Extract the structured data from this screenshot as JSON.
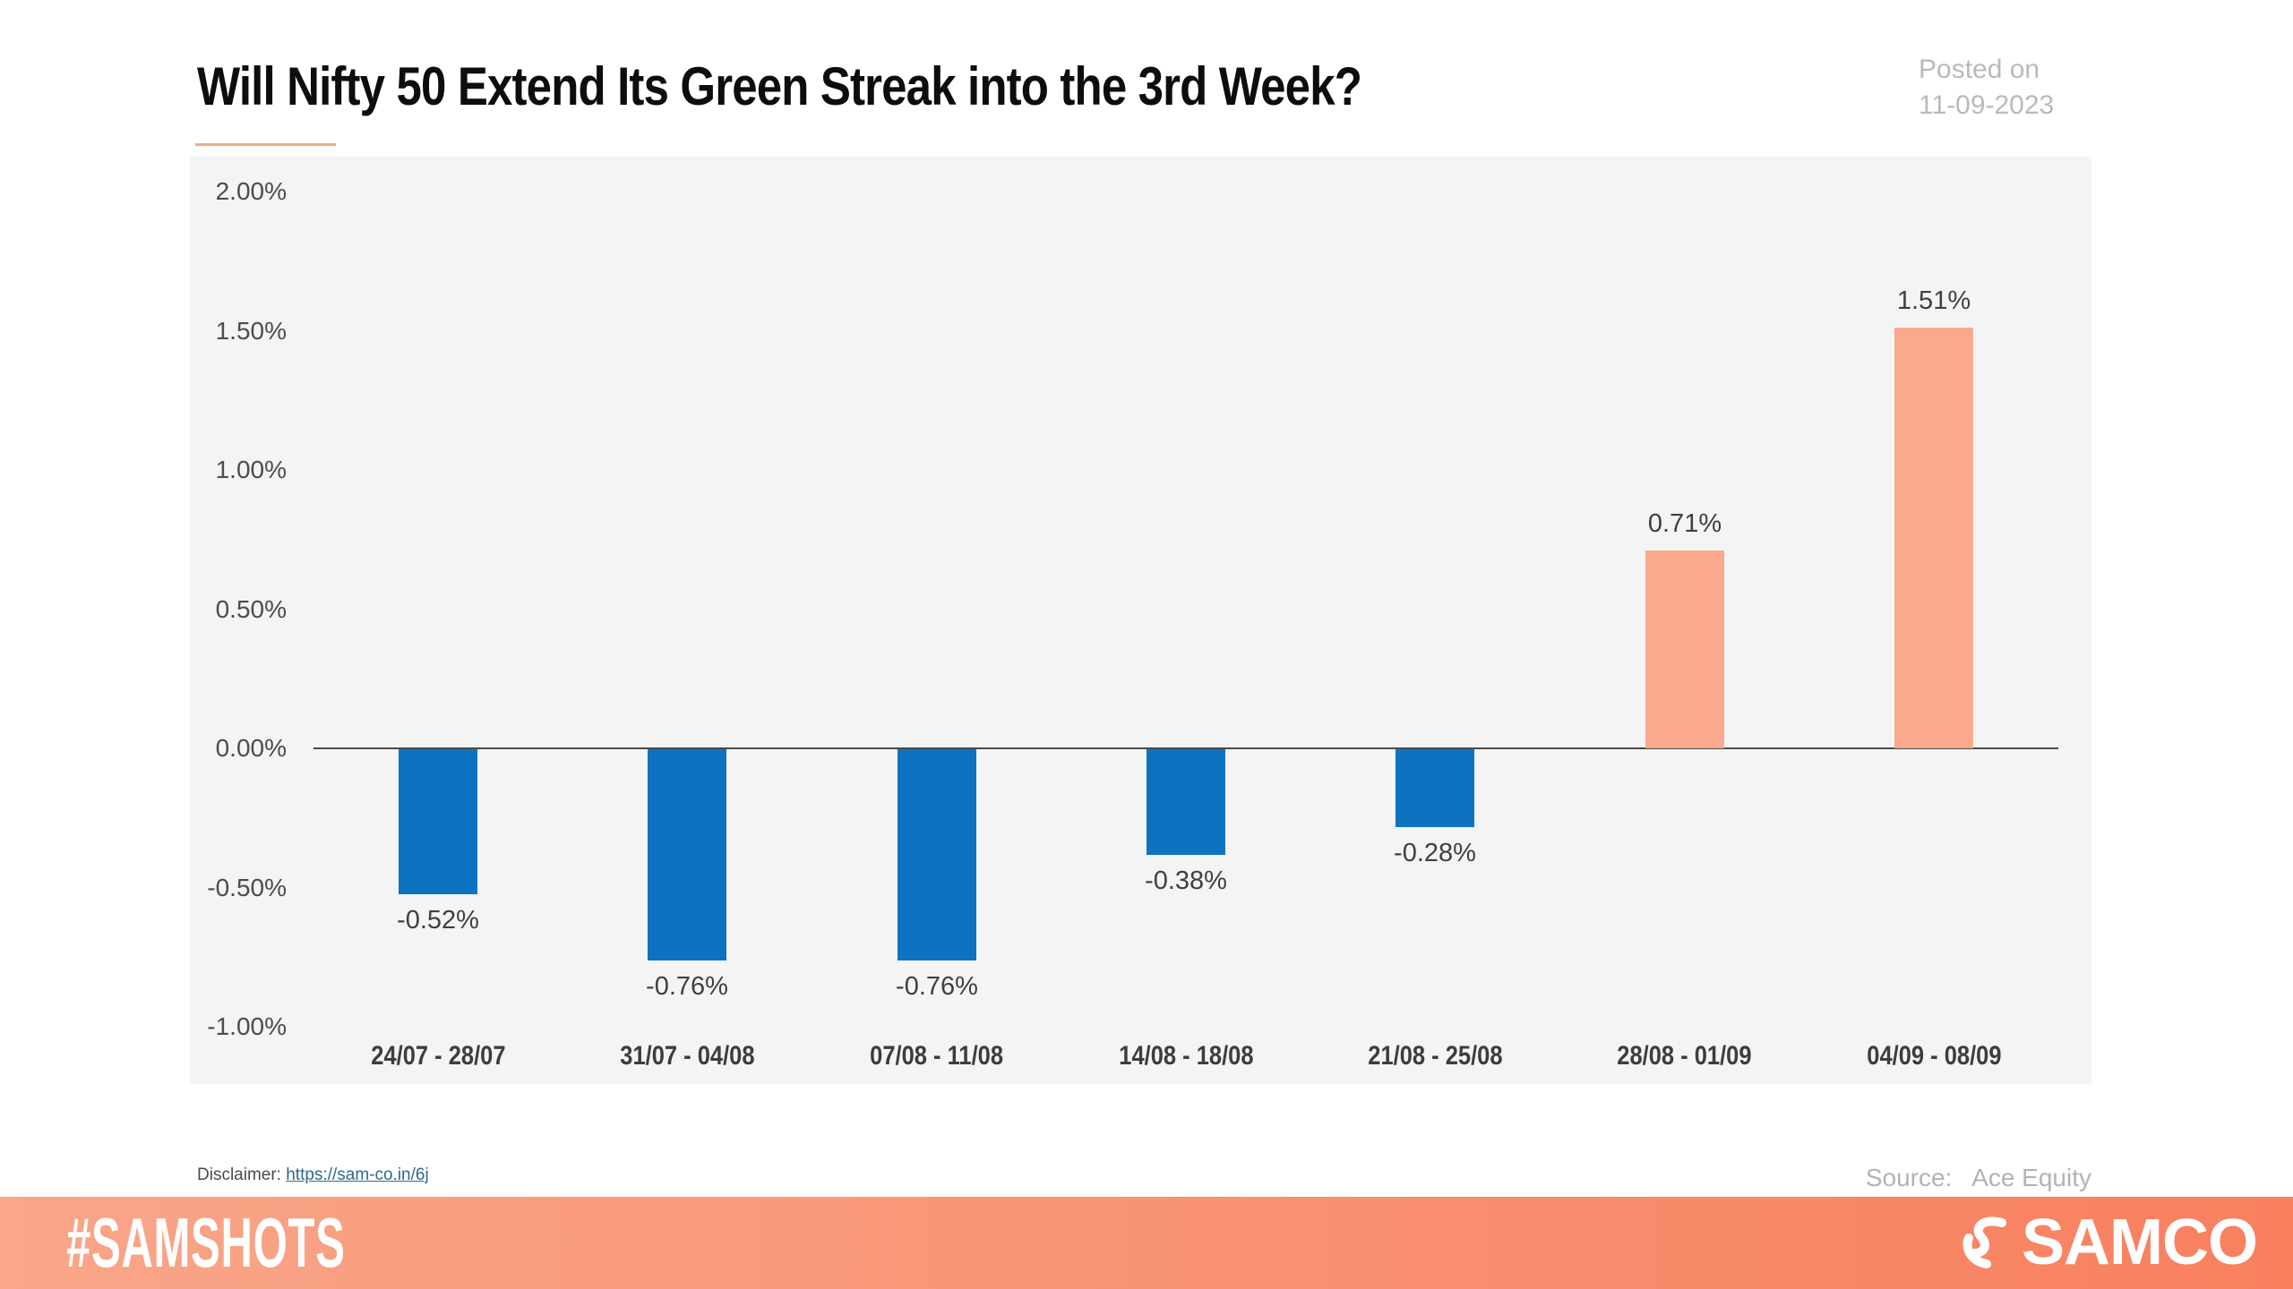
{
  "header": {
    "title": "Will Nifty 50 Extend Its Green Streak into the 3rd Week?",
    "posted_label": "Posted on",
    "posted_date": "11-09-2023",
    "underline_color": "#E9B08A"
  },
  "chart_data": {
    "type": "bar",
    "title": "Will Nifty 50 Extend Its Green Streak into the 3rd Week?",
    "categories": [
      "24/07 - 28/07",
      "31/07 - 04/08",
      "07/08 - 11/08",
      "14/08 - 18/08",
      "21/08 - 25/08",
      "28/08 - 01/09",
      "04/09 - 08/09"
    ],
    "values": [
      -0.52,
      -0.76,
      -0.76,
      -0.38,
      -0.28,
      0.71,
      1.51
    ],
    "value_labels": [
      "-0.52%",
      "-0.76%",
      "-0.76%",
      "-0.38%",
      "-0.28%",
      "0.71%",
      "1.51%"
    ],
    "xlabel": "",
    "ylabel": "",
    "ylim": [
      -1.15,
      2.1
    ],
    "yticks": [
      {
        "value": 2.0,
        "label": "2.00%"
      },
      {
        "value": 1.5,
        "label": "1.50%"
      },
      {
        "value": 1.0,
        "label": "1.00%"
      },
      {
        "value": 0.5,
        "label": "0.50%"
      },
      {
        "value": 0.0,
        "label": "0.00%"
      },
      {
        "value": -0.5,
        "label": "-0.50%"
      },
      {
        "value": -1.0,
        "label": "-1.00%"
      }
    ],
    "grid": false,
    "legend": false,
    "colors": {
      "positive": "#FBA98C",
      "negative": "#0D73C0",
      "plot_bg": "#F4F4F4",
      "axis_line": "#4A4A4A"
    }
  },
  "footnotes": {
    "disclaimer_label": "Disclaimer: ",
    "disclaimer_link": "https://sam-co.in/6j",
    "source_label": "Source:",
    "source_value": "Ace Equity"
  },
  "footer": {
    "hashtag": "#SAMSHOTS",
    "brand": "SAMCO",
    "gradient_left": "#F9A689",
    "gradient_right": "#F8805F"
  }
}
